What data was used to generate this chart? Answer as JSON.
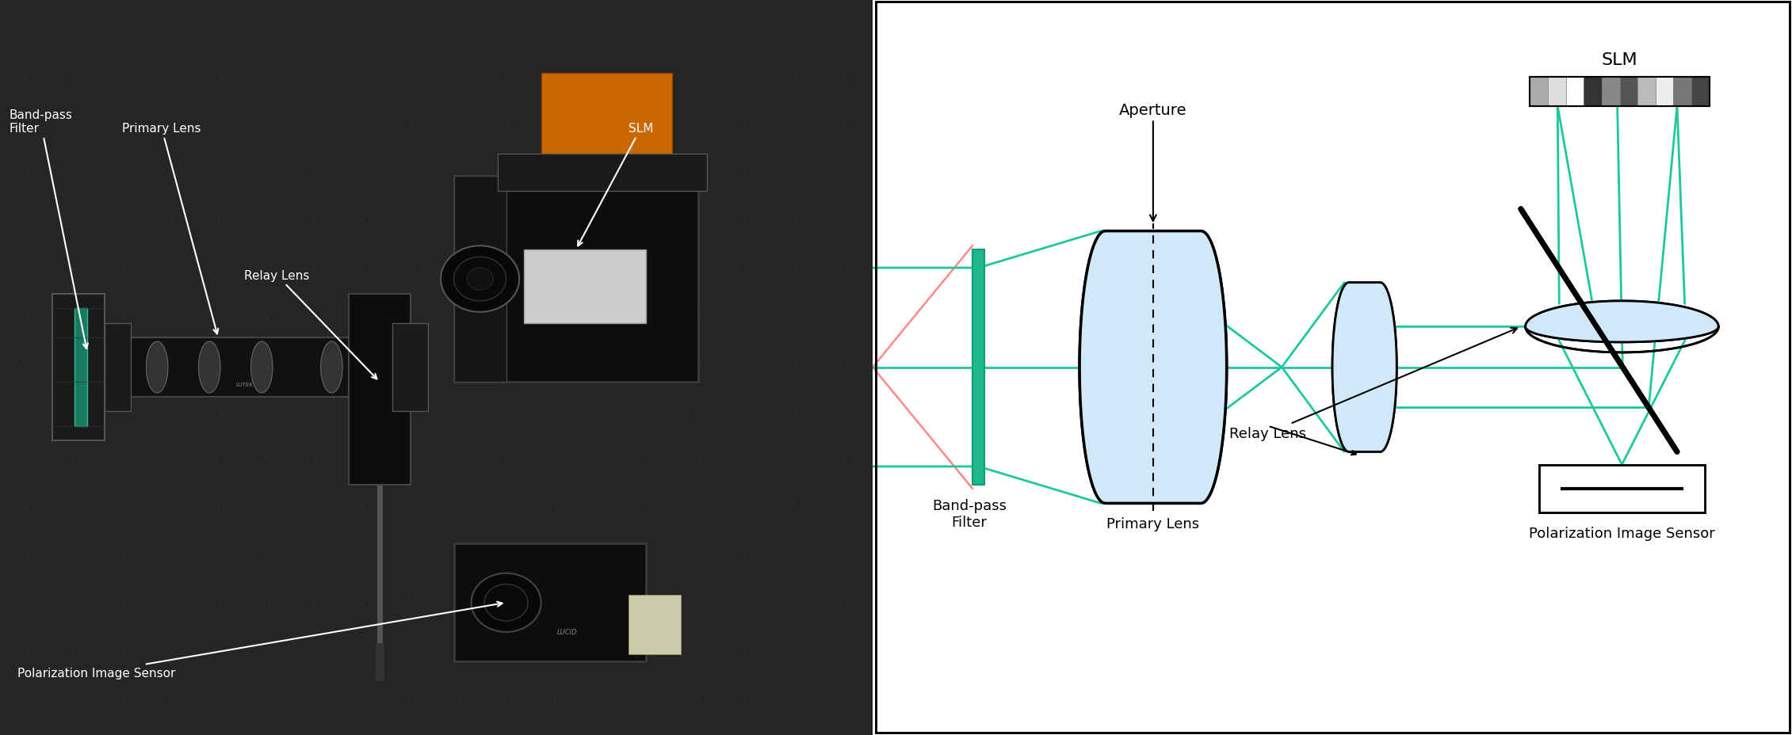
{
  "fig_width": 22.61,
  "fig_height": 9.29,
  "dpi": 100,
  "photo_bg": "#1c1c1c",
  "diagram_bg": "#ffffff",
  "teal_color": "#1dc8a0",
  "pink_color": "#ff8888",
  "lens_fill": "#d0e8f8",
  "lens_edge": "#000000",
  "filter_color": "#20b890",
  "slm_pixel_colors": [
    "#aaaaaa",
    "#dddddd",
    "#ffffff",
    "#333333",
    "#888888",
    "#555555",
    "#bbbbbb",
    "#eeeeee",
    "#777777",
    "#444444"
  ],
  "labels": {
    "bp_filter": "Band-pass\nFilter",
    "primary_lens": "Primary Lens",
    "slm_photo": "SLM",
    "relay_lens": "Relay Lens",
    "pol_sensor": "Polarization Image Sensor",
    "aperture": "Aperture",
    "bp_filter_diag": "Band-pass\nFilter",
    "primary_lens_diag": "Primary Lens",
    "relay_lens_diag": "Relay Lens",
    "slm_diag": "SLM",
    "pol_sensor_diag": "Polarization Image Sensor"
  }
}
